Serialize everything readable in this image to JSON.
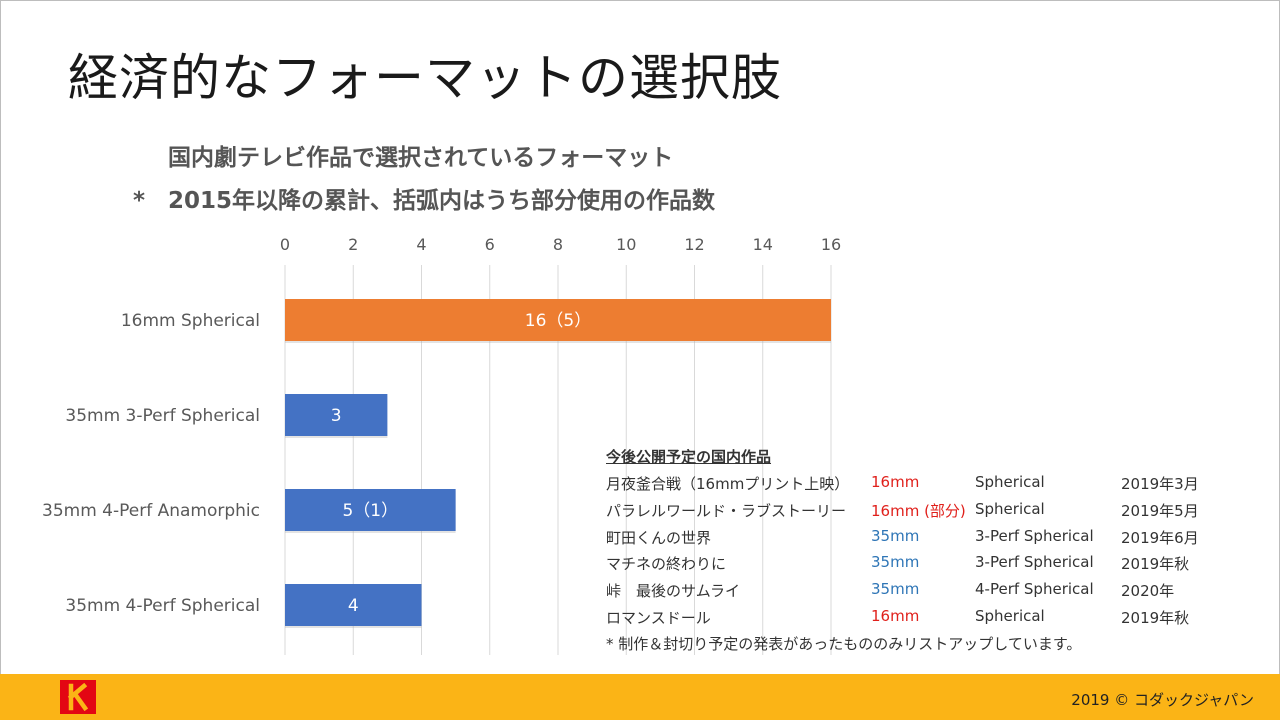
{
  "slide": {
    "title": "経済的なフォーマットの選択肢",
    "subtitle1": "国内劇テレビ作品で選択されているフォーマット",
    "subtitle2": "*　2015年以降の累計、括弧内はうち部分使用の作品数"
  },
  "colors": {
    "orange": "#ED7D31",
    "blue": "#4472C4",
    "red": "#E0201B",
    "blue_text": "#2E75B6",
    "footer": "#FBB416"
  },
  "chart_data": {
    "type": "bar",
    "orientation": "horizontal",
    "categories": [
      "16mm Spherical",
      "35mm 3-Perf Spherical",
      "35mm 4-Perf Anamorphic",
      "35mm 4-Perf Spherical"
    ],
    "values": [
      16,
      3,
      5,
      4
    ],
    "data_labels": [
      "16（5）",
      "3",
      "5（1）",
      "4"
    ],
    "bar_colors": [
      "#ED7D31",
      "#4472C4",
      "#4472C4",
      "#4472C4"
    ],
    "xlim": [
      0,
      16
    ],
    "ticks": [
      0,
      2,
      4,
      6,
      8,
      10,
      12,
      14,
      16
    ],
    "x_axis_position": "top",
    "grid": true
  },
  "upcoming": {
    "heading": "今後公開予定の国内作品",
    "rows": [
      {
        "title": "月夜釜合戦（16mmプリント上映）",
        "format": "16mm",
        "format_color": "red",
        "type": "Spherical",
        "date": "2019年3月"
      },
      {
        "title": "パラレルワールド・ラブストーリー",
        "format": "16mm (部分)",
        "format_color": "red",
        "type": "Spherical",
        "date": "2019年5月"
      },
      {
        "title": "町田くんの世界",
        "format": "35mm",
        "format_color": "blue",
        "type": "3-Perf Spherical",
        "date": "2019年6月"
      },
      {
        "title": "マチネの終わりに",
        "format": "35mm",
        "format_color": "blue",
        "type": "3-Perf Spherical",
        "date": "2019年秋"
      },
      {
        "title": "峠　最後のサムライ",
        "format": "35mm",
        "format_color": "blue",
        "type": "4-Perf Spherical",
        "date": "2020年"
      },
      {
        "title": "ロマンスドール",
        "format": "16mm",
        "format_color": "red",
        "type": "Spherical",
        "date": "2019年秋"
      }
    ],
    "note": "* 制作＆封切り予定の発表があったもののみリストアップしています。"
  },
  "footer": {
    "copyright": "2019 © コダックジャパン",
    "logo_letter": "K"
  }
}
